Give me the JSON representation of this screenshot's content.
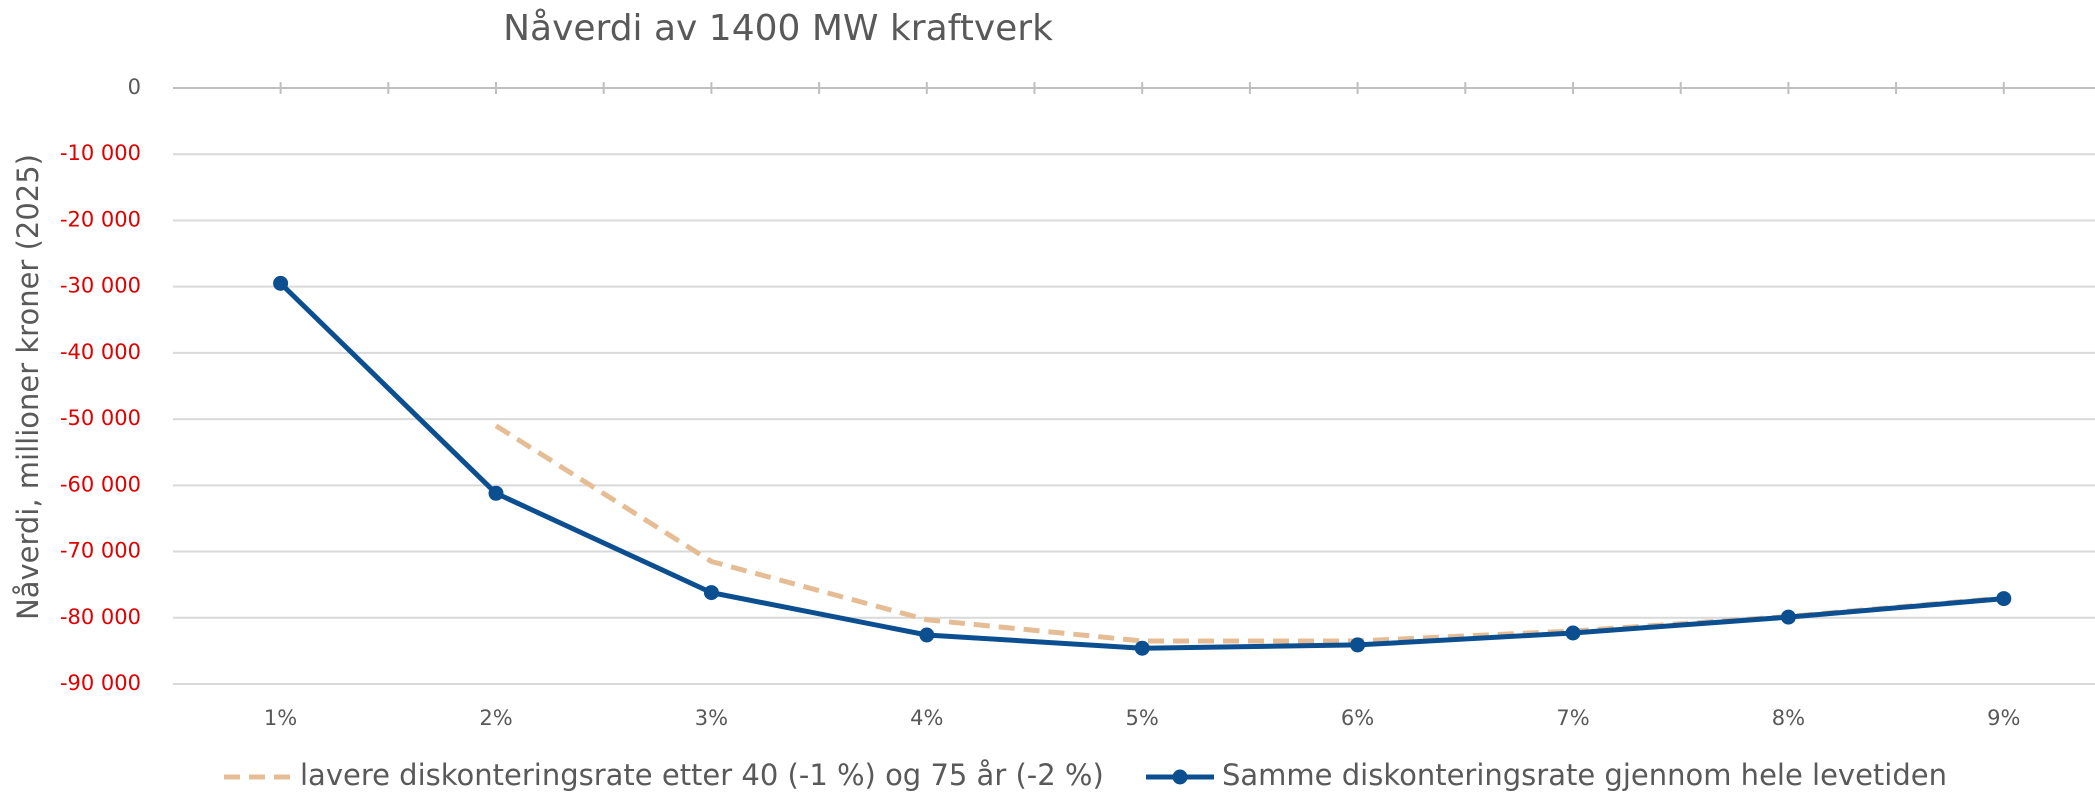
{
  "chart_data": {
    "type": "line",
    "title": "Nåverdi av 1400 MW kraftverk",
    "y_label": "Nåverdi, millioner kroner (2025)",
    "categories": [
      "1%",
      "2%",
      "3%",
      "4%",
      "5%",
      "6%",
      "7%",
      "8%",
      "9%"
    ],
    "series": [
      {
        "name": "lavere diskonteringsrate etter 40 (-1 %) og 75 år (-2 %)",
        "color": "#e6bc94",
        "dashed": true,
        "markers": false,
        "values": [
          null,
          -51000,
          -71500,
          -80300,
          -83500,
          -83500,
          -82000,
          -79800,
          -77000
        ]
      },
      {
        "name": "Samme diskonteringsrate gjennom hele levetiden",
        "color": "#0b4f91",
        "dashed": false,
        "markers": true,
        "values": [
          -29500,
          -61200,
          -76200,
          -82600,
          -84600,
          -84100,
          -82300,
          -79900,
          -77100
        ]
      }
    ],
    "ylim": [
      -90000,
      0
    ],
    "yticks": [
      0,
      {
        "value": -10000,
        "label": "-10 000"
      },
      {
        "value": -20000,
        "label": "-20 000"
      },
      {
        "value": -30000,
        "label": "-30 000"
      },
      {
        "value": -40000,
        "label": "-40 000"
      },
      {
        "value": -50000,
        "label": "-50 000"
      },
      {
        "value": -60000,
        "label": "-60 000"
      },
      {
        "value": -70000,
        "label": "-70 000"
      },
      {
        "value": -80000,
        "label": "-80 000"
      },
      {
        "value": -90000,
        "label": "-90 000"
      }
    ],
    "grid": true,
    "negative_tick_color": "#e00000",
    "legend": "bottom"
  }
}
